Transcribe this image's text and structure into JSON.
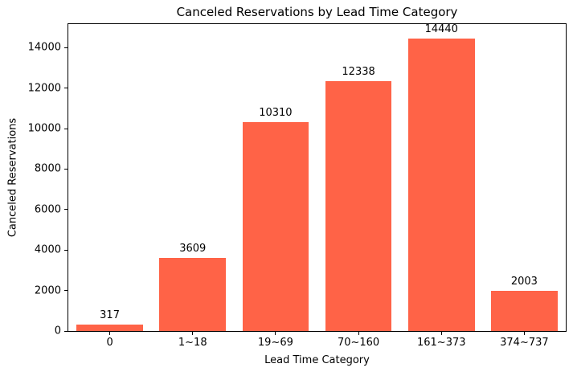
{
  "chart_data": {
    "type": "bar",
    "title": "Canceled Reservations by Lead Time Category",
    "xlabel": "Lead Time Category",
    "ylabel": "Canceled Reservations",
    "categories": [
      "0",
      "1~18",
      "19~69",
      "70~160",
      "161~373",
      "374~737"
    ],
    "values": [
      317,
      3609,
      10310,
      12338,
      14440,
      2003
    ],
    "bar_labels": [
      "317",
      "3609",
      "10310",
      "12338",
      "14440",
      "2003"
    ],
    "bar_color": "#FF6347",
    "text_color": "#000000",
    "background_color": "#FFFFFF",
    "ylim": [
      0,
      15162
    ],
    "yticks": [
      0,
      2000,
      4000,
      6000,
      8000,
      10000,
      12000,
      14000
    ],
    "bar_width_fraction": 0.8,
    "grid": false,
    "legend_position": "none"
  }
}
